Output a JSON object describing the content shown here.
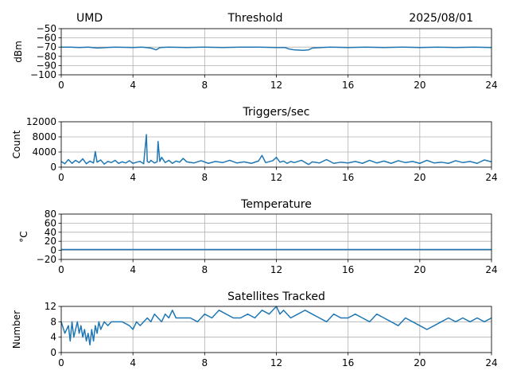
{
  "header": {
    "left": "UMD",
    "center": "Threshold",
    "right": "2025/08/01"
  },
  "style": {
    "line_color": "#1f77b4",
    "grid_color": "#b0b0b0",
    "axis_color": "#000000"
  },
  "chart_data": [
    {
      "type": "line",
      "title": "",
      "xlabel": "",
      "ylabel": "dBm",
      "xlim": [
        0,
        24
      ],
      "ylim": [
        -100,
        -50
      ],
      "xticks": [
        0,
        4,
        8,
        12,
        16,
        20,
        24
      ],
      "yticks": [
        -100,
        -90,
        -80,
        -70,
        -60,
        -50
      ],
      "ytick_labels": [
        "−100",
        "−90",
        "−80",
        "−70",
        "−60",
        "−50"
      ],
      "grid": true,
      "x": [
        0,
        0.5,
        1,
        1.5,
        2,
        2.5,
        3,
        4,
        4.5,
        5,
        5.3,
        5.5,
        6,
        7,
        8,
        9,
        10,
        11,
        12,
        12.5,
        12.7,
        13,
        13.5,
        13.8,
        14,
        14.5,
        15,
        16,
        17,
        18,
        19,
        20,
        21,
        22,
        23,
        24
      ],
      "y": [
        -70,
        -70,
        -70.5,
        -70,
        -71,
        -70.5,
        -70,
        -70.5,
        -70,
        -71,
        -73,
        -70.5,
        -70,
        -70.5,
        -70,
        -70.5,
        -70,
        -70,
        -70.5,
        -70.5,
        -72,
        -73,
        -73.5,
        -73,
        -71,
        -70.5,
        -70,
        -70.5,
        -70,
        -70.5,
        -70,
        -70.5,
        -70,
        -70.5,
        -70,
        -70.5
      ]
    },
    {
      "type": "line",
      "title": "Triggers/sec",
      "xlabel": "",
      "ylabel": "Count",
      "xlim": [
        0,
        24
      ],
      "ylim": [
        0,
        12000
      ],
      "xticks": [
        0,
        4,
        8,
        12,
        16,
        20,
        24
      ],
      "yticks": [
        0,
        4000,
        8000,
        12000
      ],
      "ytick_labels": [
        "0",
        "4000",
        "8000",
        "12000"
      ],
      "grid": true,
      "x": [
        0,
        0.2,
        0.4,
        0.6,
        0.8,
        1,
        1.2,
        1.4,
        1.6,
        1.8,
        1.9,
        2,
        2.2,
        2.4,
        2.6,
        2.8,
        3,
        3.2,
        3.4,
        3.6,
        3.8,
        4,
        4.2,
        4.4,
        4.6,
        4.75,
        4.8,
        4.9,
        5,
        5.2,
        5.35,
        5.4,
        5.5,
        5.6,
        5.8,
        6,
        6.2,
        6.4,
        6.6,
        6.8,
        7,
        7.4,
        7.8,
        8.2,
        8.6,
        9,
        9.4,
        9.8,
        10.2,
        10.6,
        11,
        11.2,
        11.4,
        11.8,
        12,
        12.2,
        12.4,
        12.6,
        12.8,
        13,
        13.4,
        13.8,
        14,
        14.4,
        14.8,
        15.2,
        15.6,
        16,
        16.4,
        16.8,
        17.2,
        17.6,
        18,
        18.4,
        18.8,
        19.2,
        19.6,
        20,
        20.4,
        20.8,
        21.2,
        21.6,
        22,
        22.4,
        22.8,
        23.2,
        23.6,
        24
      ],
      "y": [
        1500,
        900,
        2000,
        1000,
        1800,
        1200,
        2200,
        900,
        1600,
        1100,
        4100,
        1300,
        1900,
        800,
        1500,
        1200,
        1800,
        1000,
        1400,
        1100,
        1700,
        1000,
        1300,
        1500,
        900,
        8600,
        1500,
        1200,
        1800,
        1100,
        1400,
        6800,
        1500,
        2600,
        1200,
        1800,
        1000,
        1600,
        1300,
        2300,
        1400,
        1100,
        1700,
        1000,
        1500,
        1200,
        1800,
        1100,
        1400,
        1000,
        1600,
        3100,
        1200,
        1700,
        2600,
        1300,
        1600,
        1000,
        1500,
        1200,
        1800,
        700,
        1400,
        1100,
        2000,
        1000,
        1300,
        1100,
        1500,
        1000,
        1800,
        1100,
        1600,
        1000,
        1700,
        1200,
        1500,
        1000,
        1800,
        1100,
        1300,
        1000,
        1700,
        1200,
        1500,
        1000,
        1900,
        1400
      ]
    },
    {
      "type": "line",
      "title": "Temperature",
      "xlabel": "",
      "ylabel": "°C",
      "xlim": [
        0,
        24
      ],
      "ylim": [
        -20,
        80
      ],
      "xticks": [
        0,
        4,
        8,
        12,
        16,
        20,
        24
      ],
      "yticks": [
        -20,
        0,
        20,
        40,
        60,
        80
      ],
      "ytick_labels": [
        "−20",
        "0",
        "20",
        "40",
        "60",
        "80"
      ],
      "grid": true,
      "x": [
        0,
        24
      ],
      "y": [
        2,
        2
      ]
    },
    {
      "type": "line",
      "title": "Satellites Tracked",
      "xlabel": "",
      "ylabel": "Number",
      "xlim": [
        0,
        24
      ],
      "ylim": [
        0,
        12
      ],
      "xticks": [
        0,
        4,
        8,
        12,
        16,
        20,
        24
      ],
      "xtick_labels": [
        "0",
        "4",
        "8",
        "12",
        "16",
        "20",
        "24"
      ],
      "yticks": [
        0,
        4,
        8,
        12
      ],
      "ytick_labels": [
        "0",
        "4",
        "8",
        "12"
      ],
      "grid": true,
      "x": [
        0,
        0.2,
        0.4,
        0.5,
        0.6,
        0.7,
        0.8,
        0.9,
        1,
        1.1,
        1.2,
        1.3,
        1.4,
        1.5,
        1.6,
        1.7,
        1.8,
        1.9,
        2,
        2.1,
        2.2,
        2.4,
        2.6,
        2.8,
        3,
        3.4,
        3.8,
        4,
        4.2,
        4.4,
        4.6,
        4.8,
        5,
        5.2,
        5.4,
        5.6,
        5.8,
        6,
        6.2,
        6.4,
        6.8,
        7.2,
        7.6,
        8,
        8.4,
        8.8,
        9.2,
        9.6,
        10,
        10.4,
        10.8,
        11.2,
        11.6,
        12,
        12.2,
        12.4,
        12.8,
        13.2,
        13.6,
        14,
        14.4,
        14.8,
        15.2,
        15.6,
        16,
        16.4,
        16.8,
        17.2,
        17.6,
        18,
        18.4,
        18.8,
        19.2,
        19.6,
        20,
        20.4,
        20.8,
        21.2,
        21.6,
        22,
        22.4,
        22.8,
        23.2,
        23.6,
        24
      ],
      "y": [
        8,
        5,
        7,
        3,
        8,
        4,
        6,
        8,
        5,
        7,
        4,
        6,
        3,
        5,
        2,
        6,
        3,
        7,
        5,
        8,
        6,
        8,
        7,
        8,
        8,
        8,
        7,
        6,
        8,
        7,
        8,
        9,
        8,
        10,
        9,
        8,
        10,
        9,
        11,
        9,
        9,
        9,
        8,
        10,
        9,
        11,
        10,
        9,
        9,
        10,
        9,
        11,
        10,
        12,
        10,
        11,
        9,
        10,
        11,
        10,
        9,
        8,
        10,
        9,
        9,
        10,
        9,
        8,
        10,
        9,
        8,
        7,
        9,
        8,
        7,
        6,
        7,
        8,
        9,
        8,
        9,
        8,
        9,
        8,
        9
      ]
    }
  ]
}
